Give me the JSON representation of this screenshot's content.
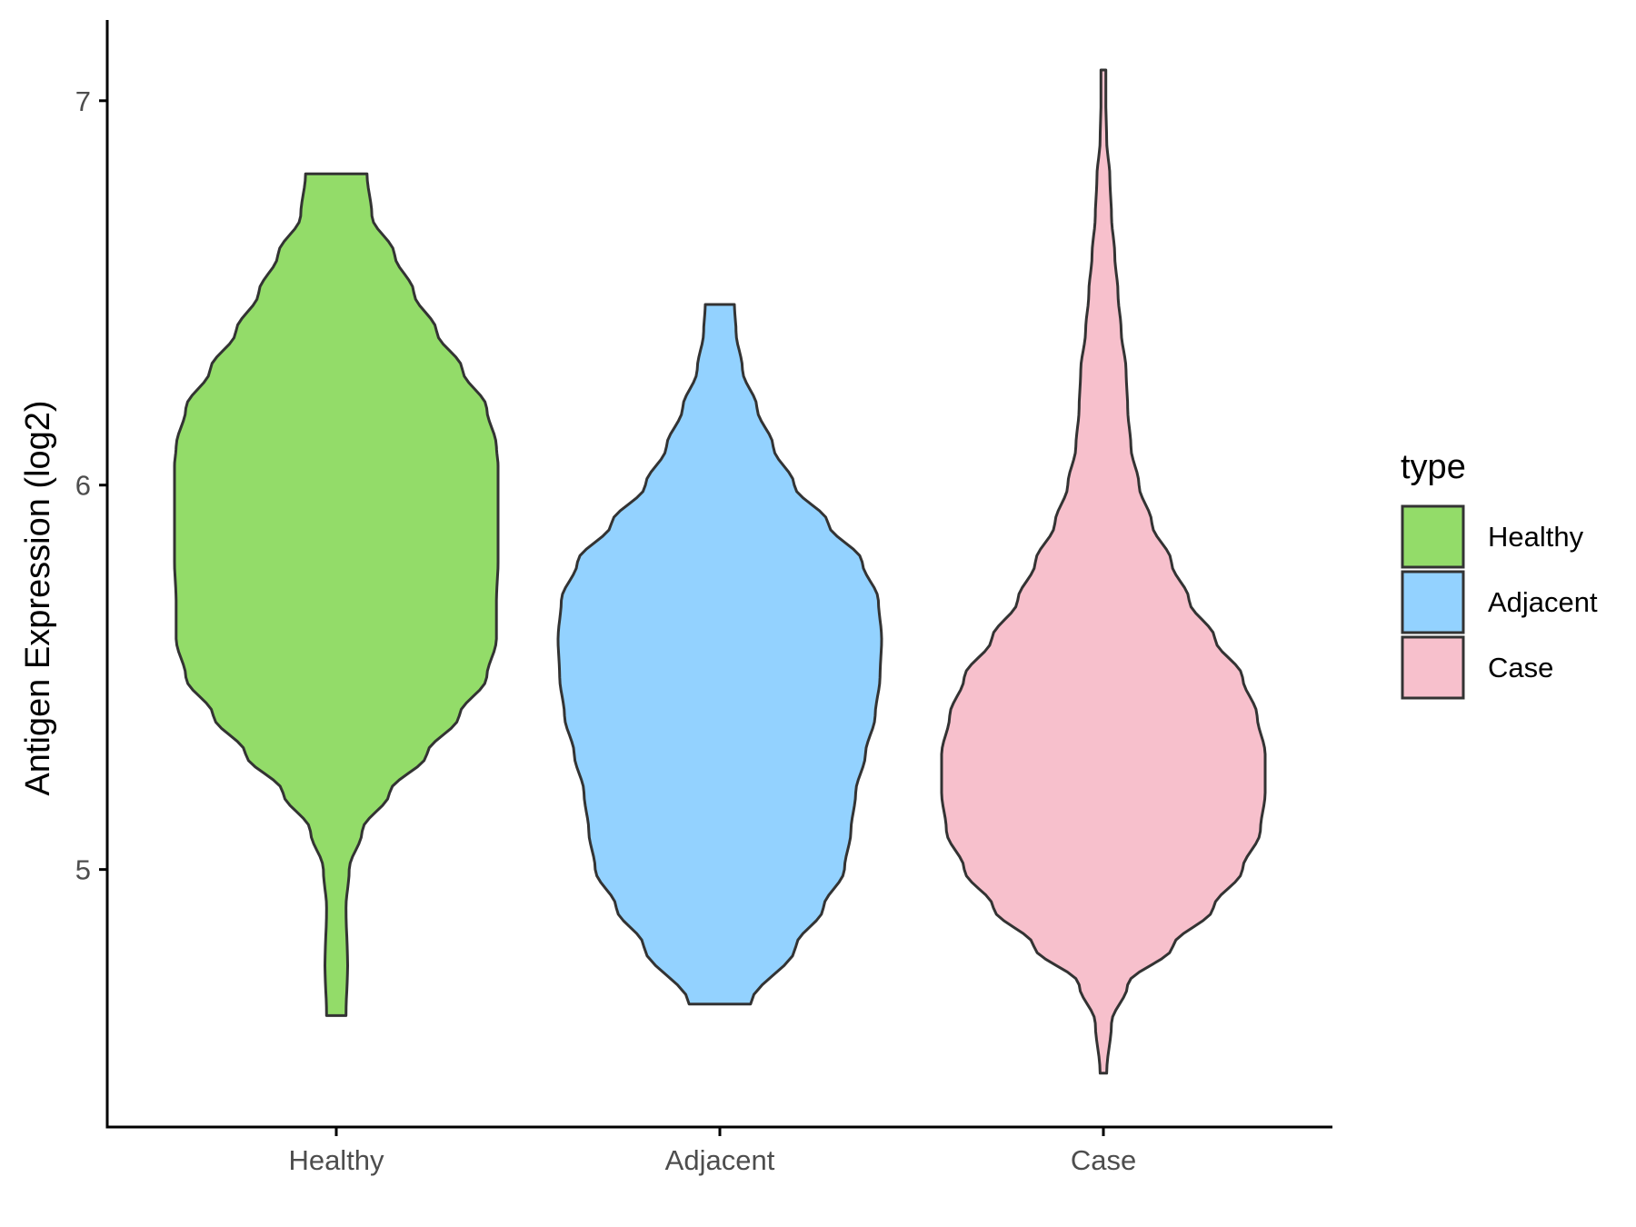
{
  "chart_data": {
    "type": "violin",
    "title": "",
    "xlabel": "",
    "ylabel": "Antigen Expression (log2)",
    "ylim": [
      4.33,
      7.21
    ],
    "yticks": [
      5,
      6,
      7
    ],
    "categories": [
      "Healthy",
      "Adjacent",
      "Case"
    ],
    "grid": false,
    "legend": {
      "title": "type",
      "position": "right",
      "entries": [
        {
          "label": "Healthy",
          "color": "#93DC69"
        },
        {
          "label": "Adjacent",
          "color": "#93D2FF"
        },
        {
          "label": "Case",
          "color": "#F7C0CC"
        }
      ]
    },
    "series": [
      {
        "name": "Healthy",
        "color": "#93DC69",
        "min": 4.62,
        "max": 6.81,
        "profile": [
          [
            4.62,
            0.06
          ],
          [
            4.75,
            0.07
          ],
          [
            4.9,
            0.06
          ],
          [
            5.0,
            0.08
          ],
          [
            5.1,
            0.16
          ],
          [
            5.2,
            0.33
          ],
          [
            5.3,
            0.56
          ],
          [
            5.4,
            0.76
          ],
          [
            5.5,
            0.93
          ],
          [
            5.6,
            0.99
          ],
          [
            5.7,
            0.99
          ],
          [
            5.8,
            1.0
          ],
          [
            5.9,
            1.0
          ],
          [
            6.0,
            1.0
          ],
          [
            6.05,
            1.0
          ],
          [
            6.1,
            0.99
          ],
          [
            6.2,
            0.93
          ],
          [
            6.3,
            0.78
          ],
          [
            6.4,
            0.62
          ],
          [
            6.5,
            0.48
          ],
          [
            6.6,
            0.36
          ],
          [
            6.7,
            0.22
          ],
          [
            6.81,
            0.19
          ]
        ]
      },
      {
        "name": "Adjacent",
        "color": "#93D2FF",
        "min": 4.65,
        "max": 6.47,
        "profile": [
          [
            4.65,
            0.19
          ],
          [
            4.8,
            0.47
          ],
          [
            4.9,
            0.64
          ],
          [
            5.0,
            0.77
          ],
          [
            5.1,
            0.81
          ],
          [
            5.2,
            0.84
          ],
          [
            5.3,
            0.9
          ],
          [
            5.4,
            0.96
          ],
          [
            5.5,
            0.99
          ],
          [
            5.6,
            1.0
          ],
          [
            5.7,
            0.98
          ],
          [
            5.8,
            0.88
          ],
          [
            5.9,
            0.67
          ],
          [
            6.0,
            0.46
          ],
          [
            6.1,
            0.33
          ],
          [
            6.2,
            0.23
          ],
          [
            6.3,
            0.14
          ],
          [
            6.4,
            0.1
          ],
          [
            6.47,
            0.09
          ]
        ]
      },
      {
        "name": "Case",
        "color": "#F7C0CC",
        "min": 4.47,
        "max": 7.08,
        "profile": [
          [
            4.47,
            0.02
          ],
          [
            4.6,
            0.05
          ],
          [
            4.7,
            0.15
          ],
          [
            4.8,
            0.43
          ],
          [
            4.9,
            0.68
          ],
          [
            5.0,
            0.86
          ],
          [
            5.1,
            0.97
          ],
          [
            5.2,
            1.0
          ],
          [
            5.3,
            1.0
          ],
          [
            5.4,
            0.95
          ],
          [
            5.5,
            0.86
          ],
          [
            5.6,
            0.69
          ],
          [
            5.7,
            0.53
          ],
          [
            5.8,
            0.42
          ],
          [
            5.9,
            0.3
          ],
          [
            6.0,
            0.22
          ],
          [
            6.1,
            0.17
          ],
          [
            6.2,
            0.15
          ],
          [
            6.3,
            0.14
          ],
          [
            6.4,
            0.11
          ],
          [
            6.5,
            0.09
          ],
          [
            6.6,
            0.07
          ],
          [
            6.7,
            0.05
          ],
          [
            6.8,
            0.04
          ],
          [
            6.9,
            0.02
          ],
          [
            7.0,
            0.015
          ],
          [
            7.08,
            0.015
          ]
        ]
      }
    ]
  }
}
